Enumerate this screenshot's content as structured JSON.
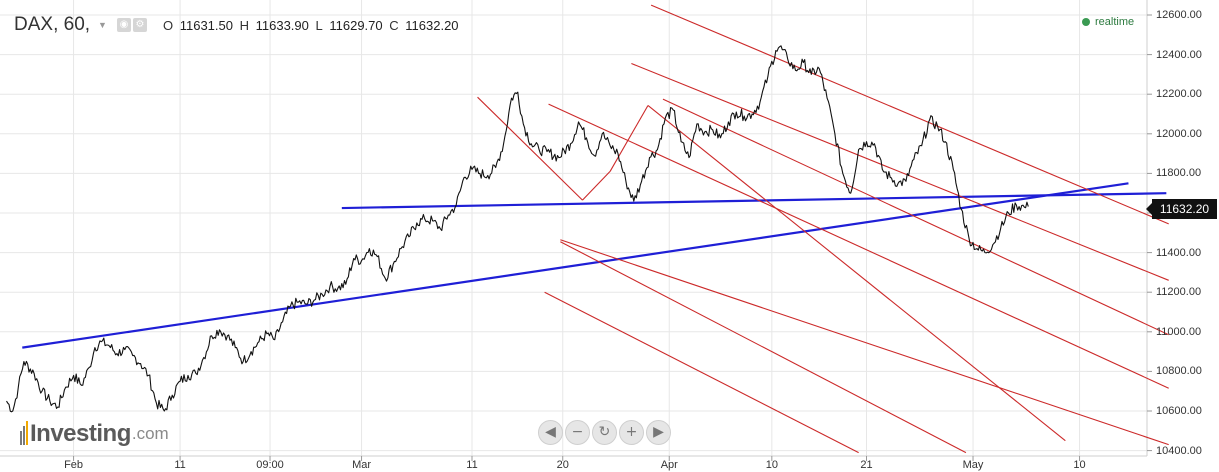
{
  "header": {
    "symbol": "DAX, 60,",
    "ohlc": {
      "o_label": "O",
      "o_value": "11631.50",
      "h_label": "H",
      "h_value": "11633.90",
      "l_label": "L",
      "l_value": "11629.70",
      "c_label": "C",
      "c_value": "11632.20"
    },
    "realtime": "realtime"
  },
  "price_tag": "11632.20",
  "logo": {
    "text": "Investing",
    "domain": ".com"
  },
  "nav_buttons": [
    "◀",
    "−",
    "↻",
    "+",
    "▶"
  ],
  "colors": {
    "price": "#111111",
    "trendline": "#1f1fd6",
    "channel": "#cc2a2a",
    "grid": "#e7e7e7",
    "realtime": "#3a9a52"
  },
  "chart_data": {
    "type": "line",
    "title": "",
    "xlabel": "",
    "ylabel": "",
    "y_ticks": [
      "12600.00",
      "12400.00",
      "12200.00",
      "12000.00",
      "11800.00",
      "11600.00",
      "11400.00",
      "11200.00",
      "11000.00",
      "10800.00",
      "10600.00",
      "10400.00"
    ],
    "x_ticks": [
      {
        "label": "Feb",
        "x": 8.5
      },
      {
        "label": "11",
        "x": 22
      },
      {
        "label": "09:00",
        "x": 33.4
      },
      {
        "label": "Mar",
        "x": 45
      },
      {
        "label": "11",
        "x": 59
      },
      {
        "label": "20",
        "x": 70.5
      },
      {
        "label": "Apr",
        "x": 84
      },
      {
        "label": "10",
        "x": 97
      },
      {
        "label": "21",
        "x": 109
      },
      {
        "label": "May",
        "x": 122.5
      },
      {
        "label": "10",
        "x": 136
      }
    ],
    "x_range": [
      0,
      141.5
    ],
    "ylim": [
      10375,
      12700
    ],
    "last_price": 11632.2,
    "grid": true,
    "series": [
      {
        "values": [
          [
            0,
            10650
          ],
          [
            0.8,
            10600
          ],
          [
            1.5,
            10720
          ],
          [
            2.2,
            10850
          ],
          [
            3.5,
            10790
          ],
          [
            4.5,
            10700
          ],
          [
            5.5,
            10650
          ],
          [
            6.5,
            10620
          ],
          [
            7.5,
            10720
          ],
          [
            8.5,
            10780
          ],
          [
            9.5,
            10730
          ],
          [
            10.5,
            10820
          ],
          [
            11.2,
            10920
          ],
          [
            12,
            10950
          ],
          [
            13,
            10930
          ],
          [
            14,
            10890
          ],
          [
            15,
            10910
          ],
          [
            16,
            10880
          ],
          [
            17,
            10840
          ],
          [
            18,
            10780
          ],
          [
            19,
            10640
          ],
          [
            20,
            10600
          ],
          [
            21,
            10680
          ],
          [
            22,
            10750
          ],
          [
            23,
            10780
          ],
          [
            24,
            10790
          ],
          [
            25,
            10870
          ],
          [
            26,
            10980
          ],
          [
            27,
            11010
          ],
          [
            28,
            10980
          ],
          [
            29,
            10920
          ],
          [
            30,
            10850
          ],
          [
            31,
            10900
          ],
          [
            32,
            10950
          ],
          [
            33,
            10990
          ],
          [
            34,
            10960
          ],
          [
            35,
            11050
          ],
          [
            36,
            11130
          ],
          [
            37,
            11150
          ],
          [
            38,
            11140
          ],
          [
            39,
            11160
          ],
          [
            40,
            11190
          ],
          [
            41,
            11230
          ],
          [
            42,
            11220
          ],
          [
            43,
            11240
          ],
          [
            44,
            11370
          ],
          [
            45,
            11360
          ],
          [
            46,
            11420
          ],
          [
            47,
            11380
          ],
          [
            48,
            11270
          ],
          [
            49,
            11340
          ],
          [
            50,
            11420
          ],
          [
            51,
            11480
          ],
          [
            52,
            11550
          ],
          [
            53,
            11570
          ],
          [
            54,
            11560
          ],
          [
            55,
            11520
          ],
          [
            56,
            11590
          ],
          [
            57,
            11640
          ],
          [
            58,
            11780
          ],
          [
            59,
            11820
          ],
          [
            60,
            11800
          ],
          [
            61,
            11790
          ],
          [
            62,
            11830
          ],
          [
            63,
            11950
          ],
          [
            64,
            12180
          ],
          [
            64.8,
            12210
          ],
          [
            65.5,
            12050
          ],
          [
            66.5,
            11950
          ],
          [
            67.5,
            11920
          ],
          [
            68.5,
            11910
          ],
          [
            70,
            11880
          ],
          [
            71.5,
            11950
          ],
          [
            72.5,
            12060
          ],
          [
            73.5,
            11980
          ],
          [
            74.5,
            11890
          ],
          [
            75.5,
            12000
          ],
          [
            76.5,
            11940
          ],
          [
            77.5,
            11900
          ],
          [
            78.5,
            11760
          ],
          [
            79.5,
            11660
          ],
          [
            80.5,
            11760
          ],
          [
            81.5,
            11880
          ],
          [
            82.5,
            11920
          ],
          [
            83.5,
            12080
          ],
          [
            84.5,
            12120
          ],
          [
            85.5,
            11960
          ],
          [
            86.5,
            11880
          ],
          [
            87.5,
            12050
          ],
          [
            88.5,
            12010
          ],
          [
            89.5,
            12020
          ],
          [
            90.5,
            11980
          ],
          [
            91.5,
            12060
          ],
          [
            92.5,
            12110
          ],
          [
            93.5,
            12090
          ],
          [
            94.5,
            12100
          ],
          [
            95.5,
            12160
          ],
          [
            96.5,
            12290
          ],
          [
            97.5,
            12420
          ],
          [
            98,
            12440
          ],
          [
            99,
            12380
          ],
          [
            100,
            12320
          ],
          [
            101,
            12360
          ],
          [
            102,
            12300
          ],
          [
            103,
            12330
          ],
          [
            104,
            12180
          ],
          [
            105,
            12000
          ],
          [
            106,
            11800
          ],
          [
            107,
            11700
          ],
          [
            108,
            11920
          ],
          [
            109,
            11960
          ],
          [
            110,
            11950
          ],
          [
            111,
            11820
          ],
          [
            112,
            11780
          ],
          [
            113,
            11750
          ],
          [
            114,
            11760
          ],
          [
            115,
            11870
          ],
          [
            116,
            11940
          ],
          [
            117,
            12070
          ],
          [
            118,
            12040
          ],
          [
            119,
            11960
          ],
          [
            120,
            11820
          ],
          [
            121,
            11620
          ],
          [
            122,
            11470
          ],
          [
            123,
            11420
          ],
          [
            124,
            11400
          ],
          [
            125,
            11440
          ],
          [
            126,
            11520
          ],
          [
            127,
            11600
          ],
          [
            128,
            11640
          ],
          [
            129,
            11630
          ],
          [
            129.5,
            11632.2
          ]
        ]
      }
    ],
    "trendlines": [
      {
        "kind": "blue",
        "start": [
          2,
          10920
        ],
        "end": [
          142.2,
          11750
        ]
      },
      {
        "kind": "blue",
        "start": [
          42.5,
          11625
        ],
        "end": [
          147,
          11700
        ]
      },
      {
        "kind": "red",
        "start": [
          59.7,
          12185
        ],
        "end": [
          73,
          11665
        ]
      },
      {
        "kind": "red",
        "start": [
          73,
          11665
        ],
        "end": [
          76.5,
          11810
        ]
      },
      {
        "kind": "red",
        "start": [
          76.5,
          11810
        ],
        "end": [
          81.3,
          12143
        ]
      },
      {
        "kind": "red",
        "start": [
          81.3,
          12143
        ],
        "end": [
          134.2,
          10450
        ]
      },
      {
        "kind": "red",
        "start": [
          81.7,
          12650
        ],
        "end": [
          147.3,
          11545
        ]
      },
      {
        "kind": "red",
        "start": [
          79.2,
          12355
        ],
        "end": [
          147.3,
          11260
        ]
      },
      {
        "kind": "red",
        "start": [
          83.2,
          12175
        ],
        "end": [
          147.3,
          10985
        ]
      },
      {
        "kind": "red",
        "start": [
          68.7,
          12150
        ],
        "end": [
          147.3,
          10715
        ]
      },
      {
        "kind": "red",
        "start": [
          70.2,
          11465
        ],
        "end": [
          147.3,
          10430
        ]
      },
      {
        "kind": "red",
        "start": [
          70.2,
          11455
        ],
        "end": [
          121.6,
          10390
        ]
      },
      {
        "kind": "red",
        "start": [
          68.2,
          11200
        ],
        "end": [
          108,
          10390
        ]
      }
    ]
  }
}
